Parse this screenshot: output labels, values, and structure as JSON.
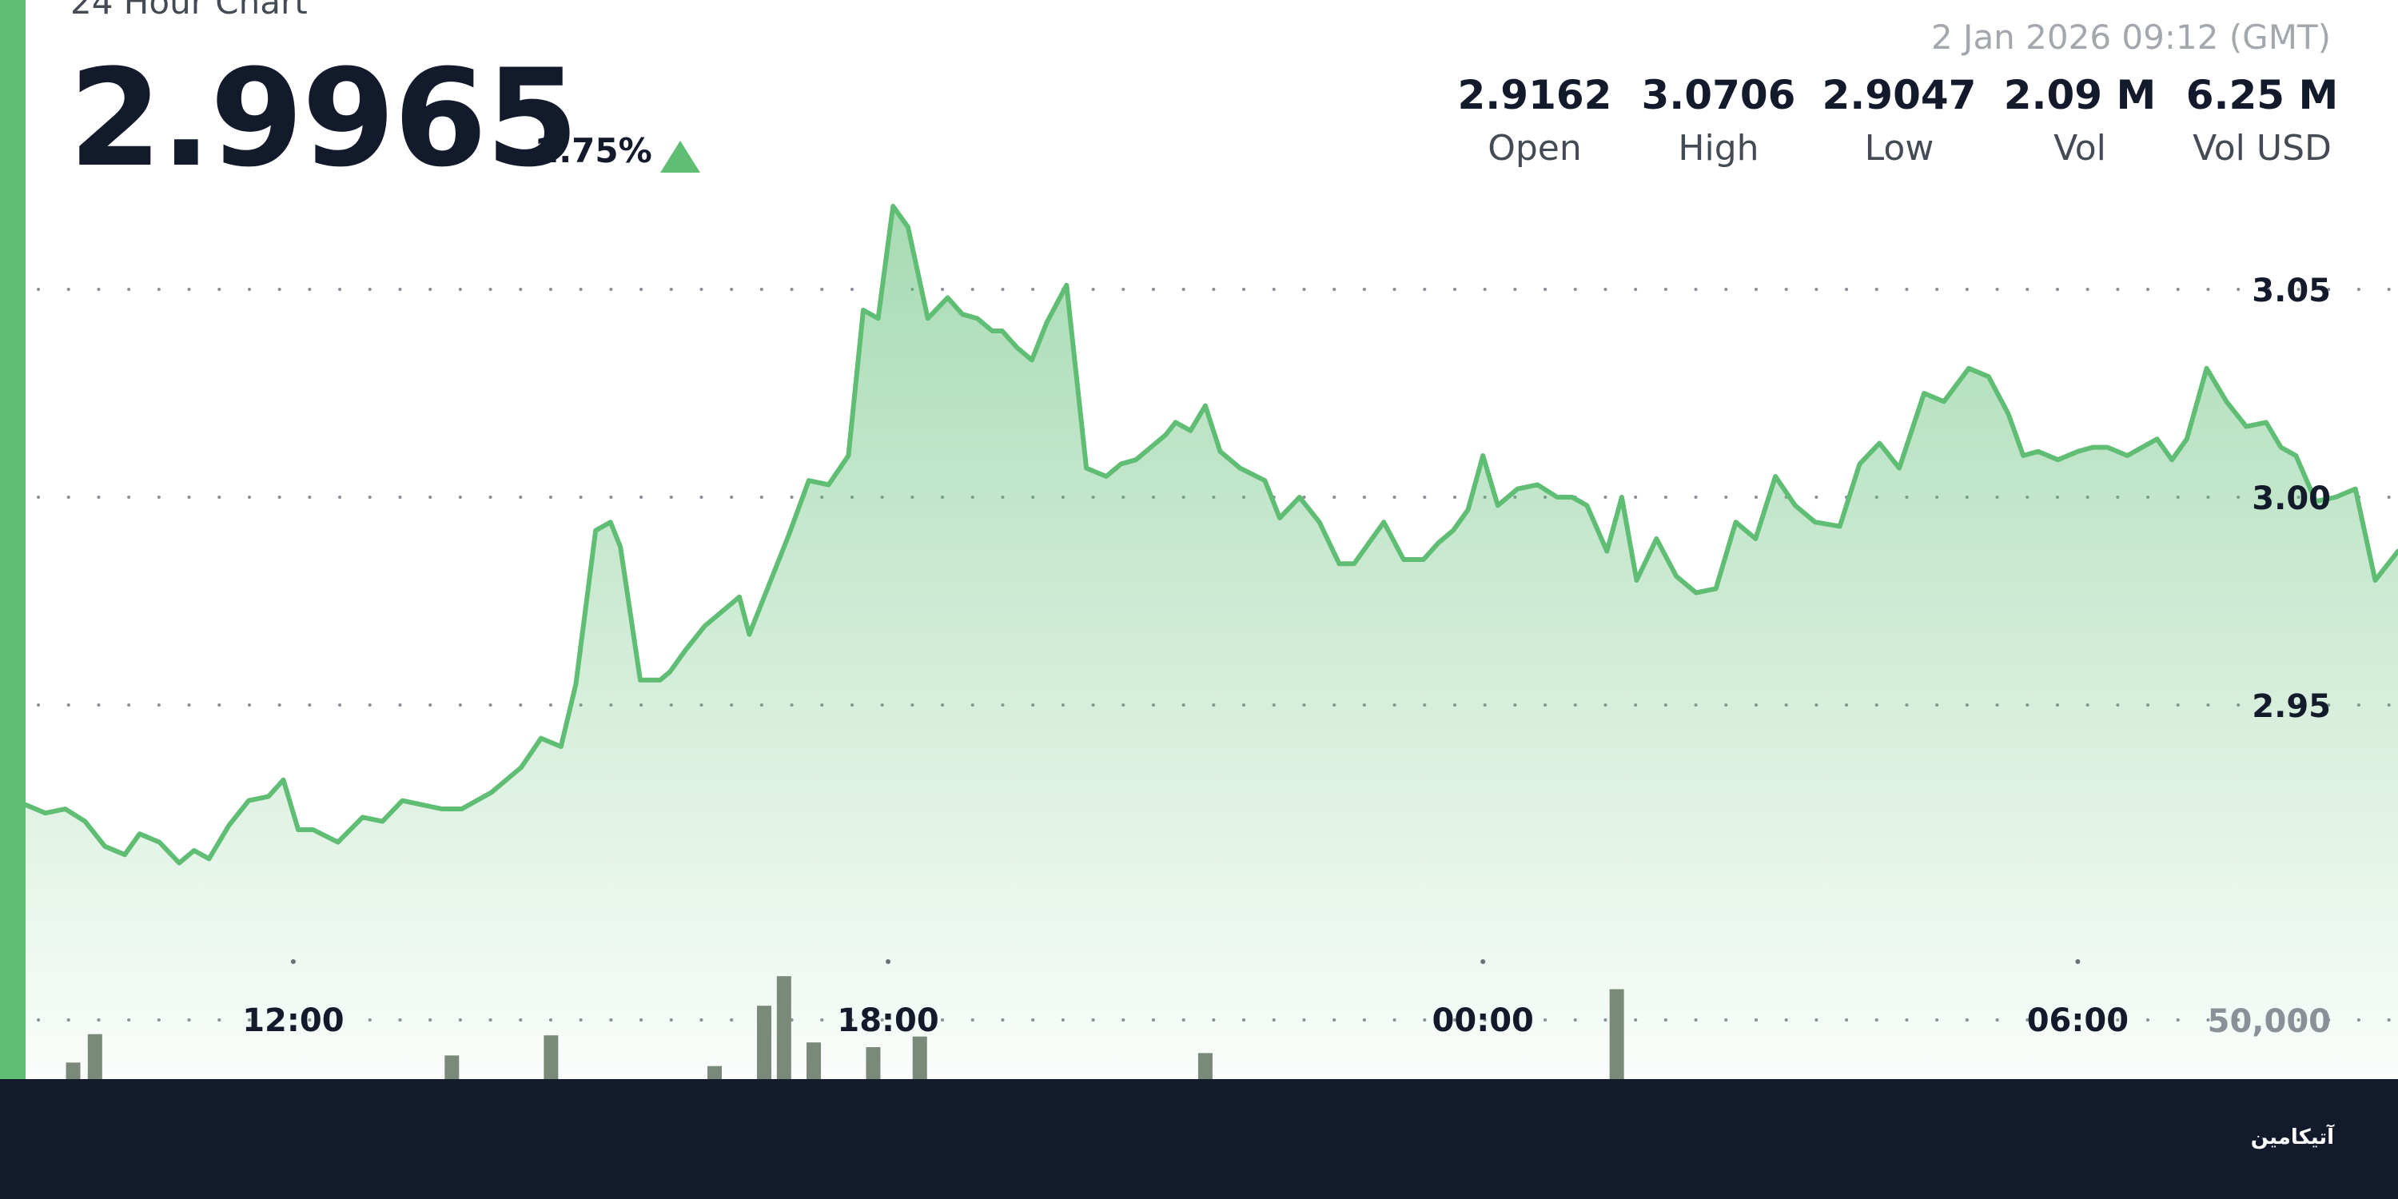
{
  "header": {
    "title": "24 Hour Chart",
    "price": "2.9965",
    "change": "2.75%",
    "timestamp": "2 Jan 2026 09:12 (GMT)"
  },
  "stats": [
    {
      "value": "2.9162",
      "label": "Open"
    },
    {
      "value": "3.0706",
      "label": "High"
    },
    {
      "value": "2.9047",
      "label": "Low"
    },
    {
      "value": "2.09 M",
      "label": "Vol"
    },
    {
      "value": "6.25 M",
      "label": "Vol USD"
    }
  ],
  "footer": {
    "logo": "آتیکامین"
  },
  "colors": {
    "accent": "#5fbd74",
    "line": "#5fbd74",
    "volume_bar": "#7a8a7a",
    "text_dark": "#121a2b"
  },
  "chart_data": {
    "type": "area",
    "title": "24 Hour Chart",
    "x_range": [
      9.3,
      33.23
    ],
    "ylim": [
      2.9,
      3.06
    ],
    "y_ticks": [
      {
        "value": 3.05,
        "label": "3.05"
      },
      {
        "value": 3.0,
        "label": "3.00"
      },
      {
        "value": 2.95,
        "label": "2.95"
      }
    ],
    "x_ticks": [
      {
        "value": 12,
        "label": "12:00"
      },
      {
        "value": 18,
        "label": "18:00"
      },
      {
        "value": 24,
        "label": "00:00"
      },
      {
        "value": 30,
        "label": "06:00"
      }
    ],
    "volume_axis_label": "50,000",
    "grid": true,
    "series": [
      {
        "x": [
          9.3,
          9.5,
          9.7,
          9.9,
          10.1,
          10.3,
          10.45,
          10.65,
          10.85,
          11.0,
          11.15,
          11.35,
          11.55,
          11.75,
          11.9,
          12.05,
          12.2,
          12.45,
          12.7,
          12.9,
          13.1,
          13.3,
          13.5,
          13.7,
          14.0,
          14.3,
          14.5,
          14.7,
          14.85,
          15.05,
          15.2,
          15.3,
          15.5,
          15.7,
          15.8,
          15.95,
          16.15,
          16.35,
          16.5,
          16.6,
          16.8,
          17.0,
          17.2,
          17.4,
          17.6,
          17.75,
          17.9,
          18.05,
          18.2,
          18.4,
          18.6,
          18.75,
          18.9,
          19.05,
          19.15,
          19.3,
          19.45,
          19.6,
          19.8,
          20.0,
          20.2,
          20.35,
          20.5,
          20.8,
          20.9,
          21.05,
          21.2,
          21.35,
          21.55,
          21.8,
          21.95,
          22.15,
          22.35,
          22.55,
          22.7,
          22.85,
          23.0,
          23.2,
          23.4,
          23.55,
          23.7,
          23.85,
          24.0,
          24.15,
          24.35,
          24.55,
          24.75,
          24.9,
          25.05,
          25.25,
          25.4,
          25.55,
          25.75,
          25.95,
          26.15,
          26.35,
          26.55,
          26.75,
          26.95,
          27.15,
          27.35,
          27.6,
          27.8,
          28.0,
          28.2,
          28.45,
          28.65,
          28.9,
          29.1,
          29.3,
          29.45,
          29.6,
          29.8,
          30.0,
          30.15,
          30.3,
          30.5,
          30.8,
          30.95,
          31.1,
          31.3,
          31.5,
          31.7,
          31.9,
          32.05,
          32.2,
          32.4,
          32.6,
          32.8,
          33.0,
          33.23
        ],
        "y": [
          2.926,
          2.924,
          2.925,
          2.922,
          2.916,
          2.914,
          2.919,
          2.917,
          2.912,
          2.915,
          2.913,
          2.921,
          2.927,
          2.928,
          2.932,
          2.92,
          2.92,
          2.917,
          2.923,
          2.922,
          2.927,
          2.926,
          2.925,
          2.925,
          2.929,
          2.935,
          2.942,
          2.94,
          2.955,
          2.992,
          2.994,
          2.988,
          2.956,
          2.956,
          2.958,
          2.963,
          2.969,
          2.973,
          2.976,
          2.967,
          2.979,
          2.991,
          3.004,
          3.003,
          3.01,
          3.045,
          3.043,
          3.07,
          3.065,
          3.043,
          3.048,
          3.044,
          3.043,
          3.04,
          3.04,
          3.036,
          3.033,
          3.042,
          3.051,
          3.007,
          3.005,
          3.008,
          3.009,
          3.015,
          3.018,
          3.016,
          3.022,
          3.011,
          3.007,
          3.004,
          2.995,
          3.0,
          2.994,
          2.984,
          2.984,
          2.989,
          2.994,
          2.985,
          2.985,
          2.989,
          2.992,
          2.997,
          3.01,
          2.998,
          3.002,
          3.003,
          3.0,
          3.0,
          2.998,
          2.987,
          3.0,
          2.98,
          2.99,
          2.981,
          2.977,
          2.978,
          2.994,
          2.99,
          3.005,
          2.998,
          2.994,
          2.993,
          3.008,
          3.013,
          3.007,
          3.025,
          3.023,
          3.031,
          3.029,
          3.02,
          3.01,
          3.011,
          3.009,
          3.011,
          3.012,
          3.012,
          3.01,
          3.014,
          3.009,
          3.014,
          3.031,
          3.023,
          3.017,
          3.018,
          3.012,
          3.01,
          2.999,
          3.0,
          3.002,
          2.98,
          2.987
        ],
        "values_volume": [
          {
            "x": 9.78,
            "v": 14000
          },
          {
            "x": 10.0,
            "v": 38000
          },
          {
            "x": 13.6,
            "v": 20000
          },
          {
            "x": 14.6,
            "v": 37000
          },
          {
            "x": 16.25,
            "v": 11000
          },
          {
            "x": 16.75,
            "v": 62000
          },
          {
            "x": 16.95,
            "v": 87000
          },
          {
            "x": 17.25,
            "v": 31000
          },
          {
            "x": 17.85,
            "v": 27000
          },
          {
            "x": 18.32,
            "v": 36000
          },
          {
            "x": 21.2,
            "v": 22000
          },
          {
            "x": 25.35,
            "v": 76000
          }
        ]
      }
    ]
  }
}
